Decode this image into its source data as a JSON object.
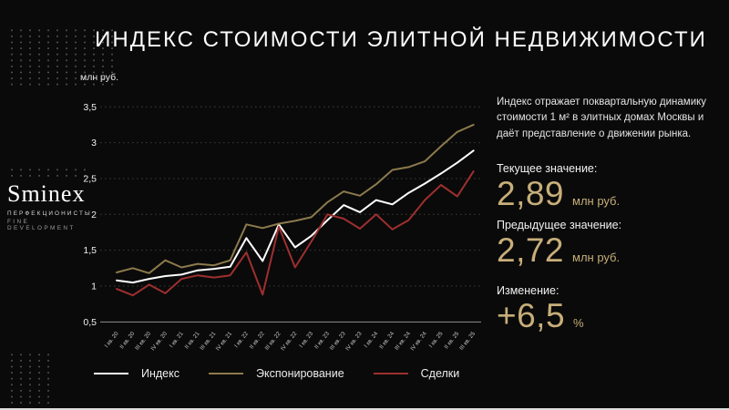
{
  "title": "ИНДЕКС СТОИМОСТИ ЭЛИТНОЙ НЕДВИЖИМОСТИ",
  "logo": {
    "name": "Sminex",
    "tagline1": "ПЕРФЕКЦИОНИСТЫ",
    "tagline2": "FINE DEVELOPMENT"
  },
  "chart_data": {
    "type": "line",
    "title": "",
    "ylabel": "млн руб.",
    "xlabel": "",
    "ylim": [
      0.5,
      3.5
    ],
    "yticks": [
      0.5,
      1,
      1.5,
      2,
      2.5,
      3,
      3.5
    ],
    "grid": "horizontal-dotted",
    "legend_position": "bottom",
    "categories": [
      "I кв. 20",
      "II кв. 20",
      "III кв. 20",
      "IV кв. 20",
      "I кв. 21",
      "II кв. 21",
      "III кв. 21",
      "IV кв. 21",
      "I кв. 22",
      "II кв. 22",
      "III кв. 22",
      "IV кв. 22",
      "I кв. 23",
      "II кв. 23",
      "III кв. 23",
      "IV кв. 23",
      "I кв. 24",
      "II кв. 24",
      "III кв. 24",
      "IV кв. 24",
      "I кв. 25",
      "II кв. 25",
      "III кв. 25"
    ],
    "series": [
      {
        "name": "Индекс",
        "color": "#ffffff",
        "values": [
          1.08,
          1.05,
          1.1,
          1.14,
          1.16,
          1.22,
          1.24,
          1.27,
          1.67,
          1.35,
          1.86,
          1.54,
          1.7,
          1.92,
          2.13,
          2.03,
          2.2,
          2.14,
          2.3,
          2.43,
          2.57,
          2.72,
          2.89
        ]
      },
      {
        "name": "Экспонирование",
        "color": "#8c7a4c",
        "values": [
          1.19,
          1.25,
          1.18,
          1.36,
          1.26,
          1.31,
          1.29,
          1.36,
          1.86,
          1.81,
          1.87,
          1.91,
          1.96,
          2.17,
          2.32,
          2.26,
          2.42,
          2.62,
          2.66,
          2.74,
          2.95,
          3.15,
          3.25
        ]
      },
      {
        "name": "Сделки",
        "color": "#9e2f2f",
        "values": [
          0.96,
          0.87,
          1.02,
          0.9,
          1.1,
          1.15,
          1.12,
          1.15,
          1.47,
          0.88,
          1.83,
          1.26,
          1.62,
          2.0,
          1.94,
          1.8,
          2.0,
          1.79,
          1.92,
          2.2,
          2.41,
          2.25,
          2.6
        ]
      }
    ]
  },
  "panel": {
    "description": "Индекс отражает поквартальную динамику стоимости 1 м² в элитных домах Москвы и даёт представление о движении рынка.",
    "current_label": "Текущее значение:",
    "current_value": "2,89",
    "current_unit": "млн руб.",
    "previous_label": "Предыдущее значение:",
    "previous_value": "2,72",
    "previous_unit": "млн руб.",
    "change_label": "Изменение:",
    "change_value": "+6,5",
    "change_unit": "%"
  },
  "colors": {
    "background": "#0a0a0a",
    "accent_gold": "#c7ae79",
    "line_white": "#ffffff",
    "line_gold": "#8c7a4c",
    "line_red": "#9e2f2f",
    "gridline": "#3f3f37",
    "axis_line": "#8f8f8f"
  }
}
